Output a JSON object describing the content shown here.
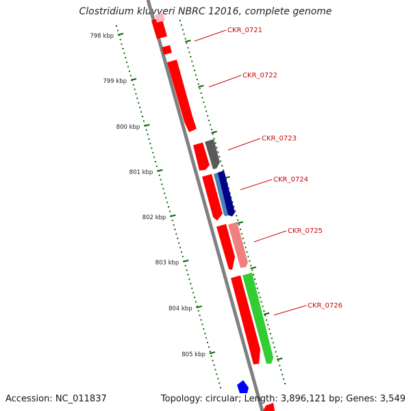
{
  "title": "Clostridium kluyveri NBRC 12016, complete genome",
  "footer": {
    "accession": "Accession: NC_011837",
    "summary": "Topology: circular; Length: 3,896,121 bp; Genes: 3,549"
  },
  "ticks": [
    "798 kbp",
    "799 kbp",
    "800 kbp",
    "801 kbp",
    "802 kbp",
    "803 kbp",
    "804 kbp",
    "805 kbp"
  ],
  "genes": [
    {
      "label": "CKR_0721",
      "color": "#ff0000"
    },
    {
      "label": "CKR_0722",
      "color": "#ff0000"
    },
    {
      "label": "CKR_0723",
      "color": "#5a5a5a"
    },
    {
      "label": "CKR_0724",
      "color": "#00008b"
    },
    {
      "label": "CKR_0725",
      "color": "#f08080"
    },
    {
      "label": "CKR_0726",
      "color": "#32cd32"
    }
  ],
  "colors": {
    "label": "#cc0000",
    "tick": "#006400",
    "backbone": "#808080",
    "cds": "#ff0000",
    "steelblue": "#4682b4",
    "blue": "#0000ff",
    "pink": "#ffb6c1"
  }
}
